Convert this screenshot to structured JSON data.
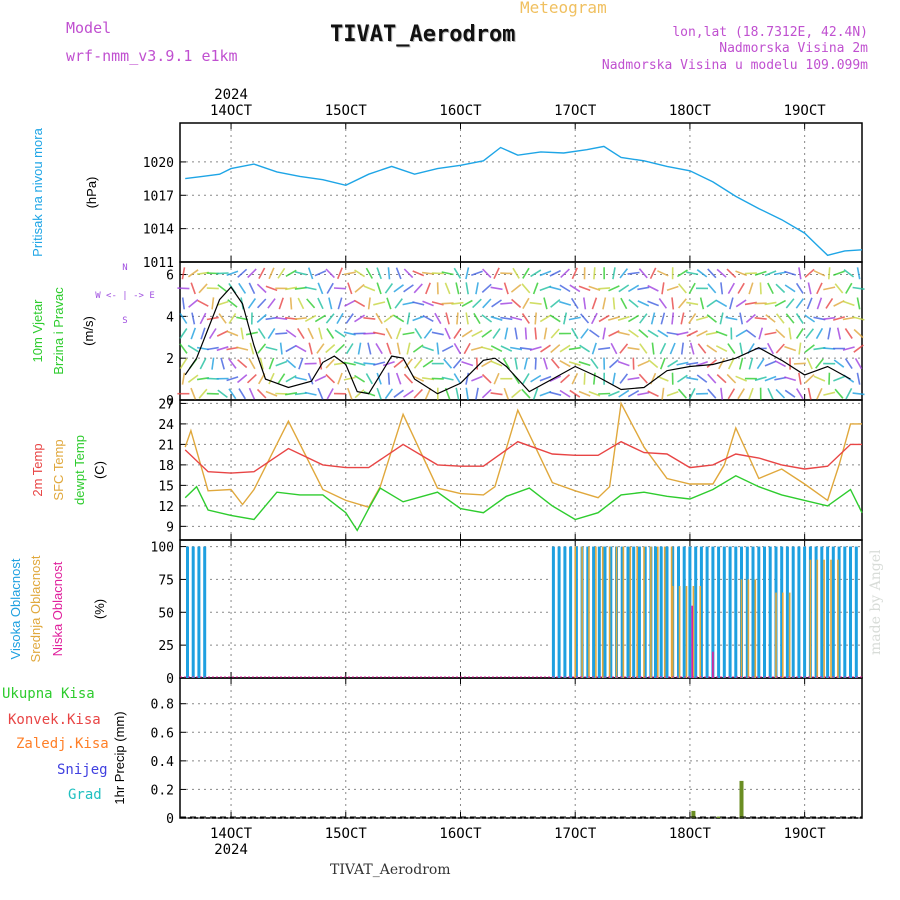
{
  "header": {
    "model_label": "Model",
    "model_value": "wrf-nmm_v3.9.1 e1km",
    "chart_type_label": "Meteogram",
    "station_title": "TIVAT_Aerodrom",
    "lonlat": "lon,lat (18.7312E, 42.4N)",
    "elev_station": "Nadmorska Visina 2m",
    "elev_model": "Nadmorska Visina u modelu 109.099m",
    "footer_title": "TIVAT_Aerodrom",
    "credit": "made by Angel"
  },
  "colors": {
    "pressure": "#1ea5e6",
    "temp2m": "#e84545",
    "sfc_temp": "#e0a83c",
    "dewpt": "#2ecc2e",
    "high_cloud": "#1ea0e0",
    "mid_cloud": "#e0a83c",
    "low_cloud": "#e0209c",
    "precip_total": "#2ecc2e",
    "precip_conv": "#e84545",
    "precip_frz": "#ff7f27",
    "precip_snow": "#4040e0",
    "precip_graupel": "#20c0c0",
    "precip_bar": "#6b8e23",
    "wind_speed": "#000000",
    "wind_gust": "#e84545",
    "credit": "#d8dcd8",
    "title_violet": "#c050d0",
    "meteogram_orange": "#f0c060"
  },
  "chart_data": [
    {
      "id": "pressure",
      "type": "line",
      "title_lines": [
        "Pritisak na nivou mora",
        "(hPa)"
      ],
      "x_ticks": [
        "14OCT",
        "15OCT",
        "16OCT",
        "17OCT",
        "18OCT",
        "19OCT"
      ],
      "x_tick_year": "2024",
      "ylim": [
        1011,
        1023.5
      ],
      "yticks": [
        "1011",
        "1014",
        "1017",
        "1020"
      ],
      "grid": true,
      "x": [
        13.6,
        13.75,
        13.9,
        14.0,
        14.2,
        14.4,
        14.6,
        14.8,
        15.0,
        15.2,
        15.4,
        15.6,
        15.8,
        16.0,
        16.2,
        16.35,
        16.5,
        16.7,
        16.9,
        17.1,
        17.25,
        17.4,
        17.6,
        17.8,
        18.0,
        18.2,
        18.4,
        18.6,
        18.8,
        19.0,
        19.1,
        19.2,
        19.35,
        19.5
      ],
      "values": [
        1018.5,
        1018.7,
        1018.9,
        1019.4,
        1019.8,
        1019.1,
        1018.7,
        1018.4,
        1017.9,
        1018.9,
        1019.6,
        1018.9,
        1019.4,
        1019.7,
        1020.1,
        1021.3,
        1020.6,
        1020.9,
        1020.8,
        1021.1,
        1021.4,
        1020.4,
        1020.1,
        1019.6,
        1019.2,
        1018.2,
        1016.9,
        1015.8,
        1014.8,
        1013.6,
        1012.6,
        1011.6,
        1012.0,
        1012.1
      ]
    },
    {
      "id": "wind",
      "type": "line",
      "title_lines": [
        "10m Vjetar",
        "Brzina i Pravac",
        "(m/s)"
      ],
      "compass_text": "W <- | -> E",
      "compass_n": "N",
      "compass_s": "S",
      "ylim": [
        0,
        6.6
      ],
      "yticks": [
        "0",
        "2",
        "4",
        "6"
      ],
      "grid": true,
      "series": [
        {
          "name": "",
          "x": [
            13.6,
            13.7,
            13.8,
            13.9,
            14.0,
            14.1,
            14.2,
            14.3,
            14.5,
            14.7,
            14.8,
            14.9,
            15.0,
            15.1,
            15.2,
            15.3,
            15.4,
            15.5,
            15.6,
            15.8,
            16.0,
            16.2,
            16.3,
            16.4,
            16.6,
            16.8,
            17.0,
            17.2,
            17.4,
            17.6,
            17.8,
            18.0,
            18.2,
            18.4,
            18.6,
            18.8,
            19.0,
            19.2,
            19.4
          ],
          "values": [
            1.2,
            2.0,
            3.4,
            4.8,
            5.4,
            4.6,
            2.6,
            1.0,
            0.6,
            0.9,
            1.8,
            2.1,
            1.7,
            0.4,
            0.3,
            1.2,
            2.1,
            2.0,
            1.0,
            0.3,
            0.8,
            1.9,
            2.0,
            1.6,
            0.4,
            1.0,
            1.6,
            1.1,
            0.5,
            0.6,
            1.4,
            1.6,
            1.7,
            2.0,
            2.5,
            1.9,
            1.2,
            1.6,
            1.0
          ]
        }
      ]
    },
    {
      "id": "temperature",
      "type": "line",
      "title_lines": [
        "2m Temp",
        "SFC Temp",
        "dewpt Temp",
        "(C)"
      ],
      "ylim": [
        7,
        27.5
      ],
      "yticks": [
        "9",
        "12",
        "15",
        "18",
        "21",
        "24",
        "27"
      ],
      "grid": true,
      "series": [
        {
          "name": "2m Temp",
          "x": [
            13.6,
            13.8,
            14.0,
            14.2,
            14.5,
            14.8,
            15.0,
            15.2,
            15.5,
            15.8,
            16.0,
            16.2,
            16.5,
            16.8,
            17.0,
            17.2,
            17.4,
            17.6,
            17.8,
            18.0,
            18.2,
            18.4,
            18.6,
            18.8,
            19.0,
            19.2,
            19.4,
            19.5
          ],
          "values": [
            20.2,
            17.0,
            16.8,
            17.0,
            20.4,
            18.0,
            17.6,
            17.6,
            21.0,
            18.0,
            17.8,
            17.8,
            21.4,
            19.6,
            19.4,
            19.4,
            21.4,
            19.8,
            19.6,
            17.6,
            18.0,
            19.6,
            19.0,
            18.0,
            17.4,
            17.8,
            21.0,
            21.0
          ]
        },
        {
          "name": "SFC Temp",
          "x": [
            13.6,
            13.65,
            13.8,
            14.0,
            14.1,
            14.2,
            14.5,
            14.8,
            15.0,
            15.2,
            15.3,
            15.5,
            15.8,
            16.0,
            16.2,
            16.3,
            16.5,
            16.8,
            17.0,
            17.2,
            17.3,
            17.4,
            17.6,
            17.8,
            18.0,
            18.2,
            18.3,
            18.4,
            18.6,
            18.8,
            19.0,
            19.2,
            19.3,
            19.4,
            19.5
          ],
          "values": [
            20.6,
            23.0,
            14.2,
            14.4,
            12.2,
            14.4,
            24.4,
            14.4,
            12.8,
            11.8,
            14.8,
            25.4,
            14.6,
            13.8,
            13.6,
            14.8,
            26.0,
            15.4,
            14.2,
            13.2,
            14.8,
            27.0,
            20.6,
            16.0,
            15.2,
            15.2,
            18.0,
            23.4,
            16.0,
            17.4,
            15.2,
            12.8,
            18.0,
            24.0,
            24.0
          ]
        },
        {
          "name": "dewpt Temp",
          "x": [
            13.6,
            13.7,
            13.8,
            14.0,
            14.2,
            14.4,
            14.6,
            14.8,
            15.0,
            15.1,
            15.2,
            15.3,
            15.5,
            15.8,
            16.0,
            16.2,
            16.4,
            16.6,
            16.8,
            17.0,
            17.2,
            17.4,
            17.6,
            17.8,
            18.0,
            18.2,
            18.4,
            18.6,
            18.8,
            19.0,
            19.2,
            19.4,
            19.5
          ],
          "values": [
            13.2,
            14.8,
            11.4,
            10.6,
            10.0,
            14.0,
            13.6,
            13.6,
            11.0,
            8.4,
            11.6,
            14.6,
            12.6,
            14.0,
            11.6,
            11.0,
            13.4,
            14.6,
            12.0,
            10.0,
            11.0,
            13.6,
            14.0,
            13.4,
            13.0,
            14.4,
            16.4,
            14.8,
            13.6,
            12.8,
            12.0,
            14.4,
            11.0
          ]
        }
      ]
    },
    {
      "id": "cloud",
      "type": "bar",
      "title_lines": [
        "Visoka Oblacnost",
        "Srednja Oblacnost",
        "Niska Oblacnost",
        "(%)"
      ],
      "ylim": [
        0,
        105
      ],
      "yticks": [
        "0",
        "25",
        "50",
        "75",
        "100"
      ],
      "grid": true,
      "series": [
        {
          "name": "Visoka Oblacnost",
          "ranges": [
            [
              13.62,
              13.82,
              100
            ],
            [
              16.81,
              17.7,
              100
            ],
            [
              17.7,
              18.6,
              100
            ],
            [
              18.6,
              19.25,
              100
            ],
            [
              19.25,
              19.47,
              100
            ]
          ]
        },
        {
          "name": "Srednja Oblacnost",
          "ranges": [
            [
              17.0,
              17.85,
              100
            ],
            [
              17.85,
              18.1,
              70
            ],
            [
              18.45,
              18.6,
              75
            ],
            [
              18.75,
              18.9,
              65
            ],
            [
              19.05,
              19.3,
              90
            ]
          ]
        },
        {
          "name": "Niska Oblacnost",
          "ranges": [
            [
              18.02,
              18.06,
              55
            ],
            [
              18.2,
              18.24,
              20
            ]
          ]
        }
      ]
    },
    {
      "id": "precip",
      "type": "bar",
      "title_lines": [
        "1hr Precip (mm)"
      ],
      "legend": [
        "Ukupna Kisa",
        "Konvek.Kisa",
        "Zaledj.Kisa",
        "Snijeg",
        "Grad"
      ],
      "ylim": [
        0,
        0.98
      ],
      "yticks": [
        "0",
        "0.2",
        "0.4",
        "0.6",
        "0.8"
      ],
      "grid": true,
      "x": [
        18.03,
        18.25,
        18.45
      ],
      "values": [
        0.05,
        0.01,
        0.26
      ]
    }
  ]
}
